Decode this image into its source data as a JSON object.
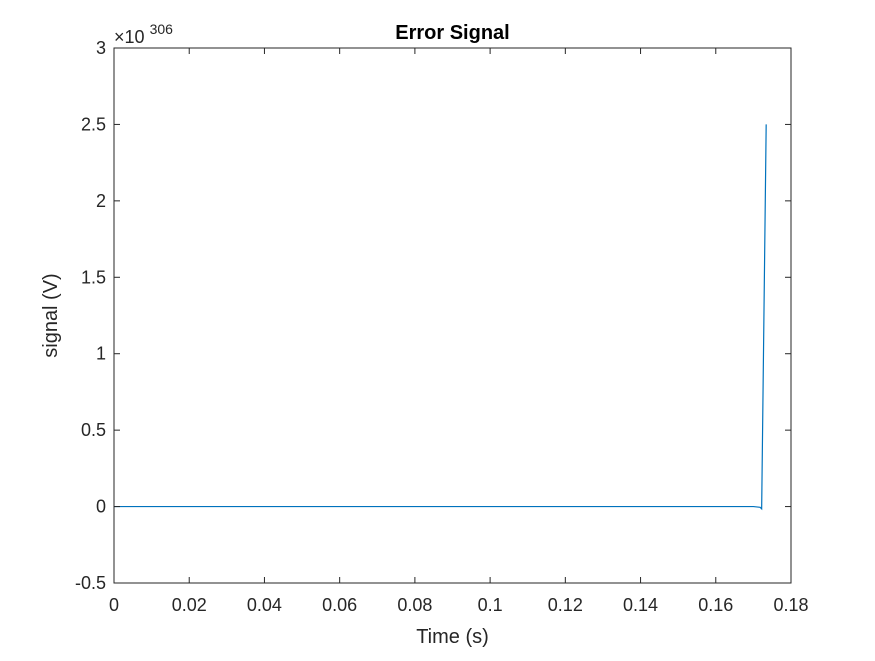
{
  "chart_data": {
    "type": "line",
    "title": "Error Signal",
    "xlabel": "Time (s)",
    "ylabel": "signal (V)",
    "y_multiplier_base": "×10",
    "y_multiplier_exponent": "306",
    "xlim": [
      0,
      0.18
    ],
    "ylim": [
      -0.5,
      3
    ],
    "x_ticks": [
      0,
      0.02,
      0.04,
      0.06,
      0.08,
      0.1,
      0.12,
      0.14,
      0.16,
      0.18
    ],
    "x_tick_labels": [
      "0",
      "0.02",
      "0.04",
      "0.06",
      "0.08",
      "0.1",
      "0.12",
      "0.14",
      "0.16",
      "0.18"
    ],
    "y_ticks": [
      -0.5,
      0,
      0.5,
      1,
      1.5,
      2,
      2.5,
      3
    ],
    "y_tick_labels": [
      "-0.5",
      "0",
      "0.5",
      "1",
      "1.5",
      "2",
      "2.5",
      "3"
    ],
    "grid": false,
    "box": true,
    "series": [
      {
        "color": "#0072BD",
        "x": [
          0,
          0.17,
          0.1718,
          0.1722,
          0.1734
        ],
        "y": [
          0,
          0,
          -0.005,
          -0.015,
          2.5
        ]
      }
    ]
  }
}
